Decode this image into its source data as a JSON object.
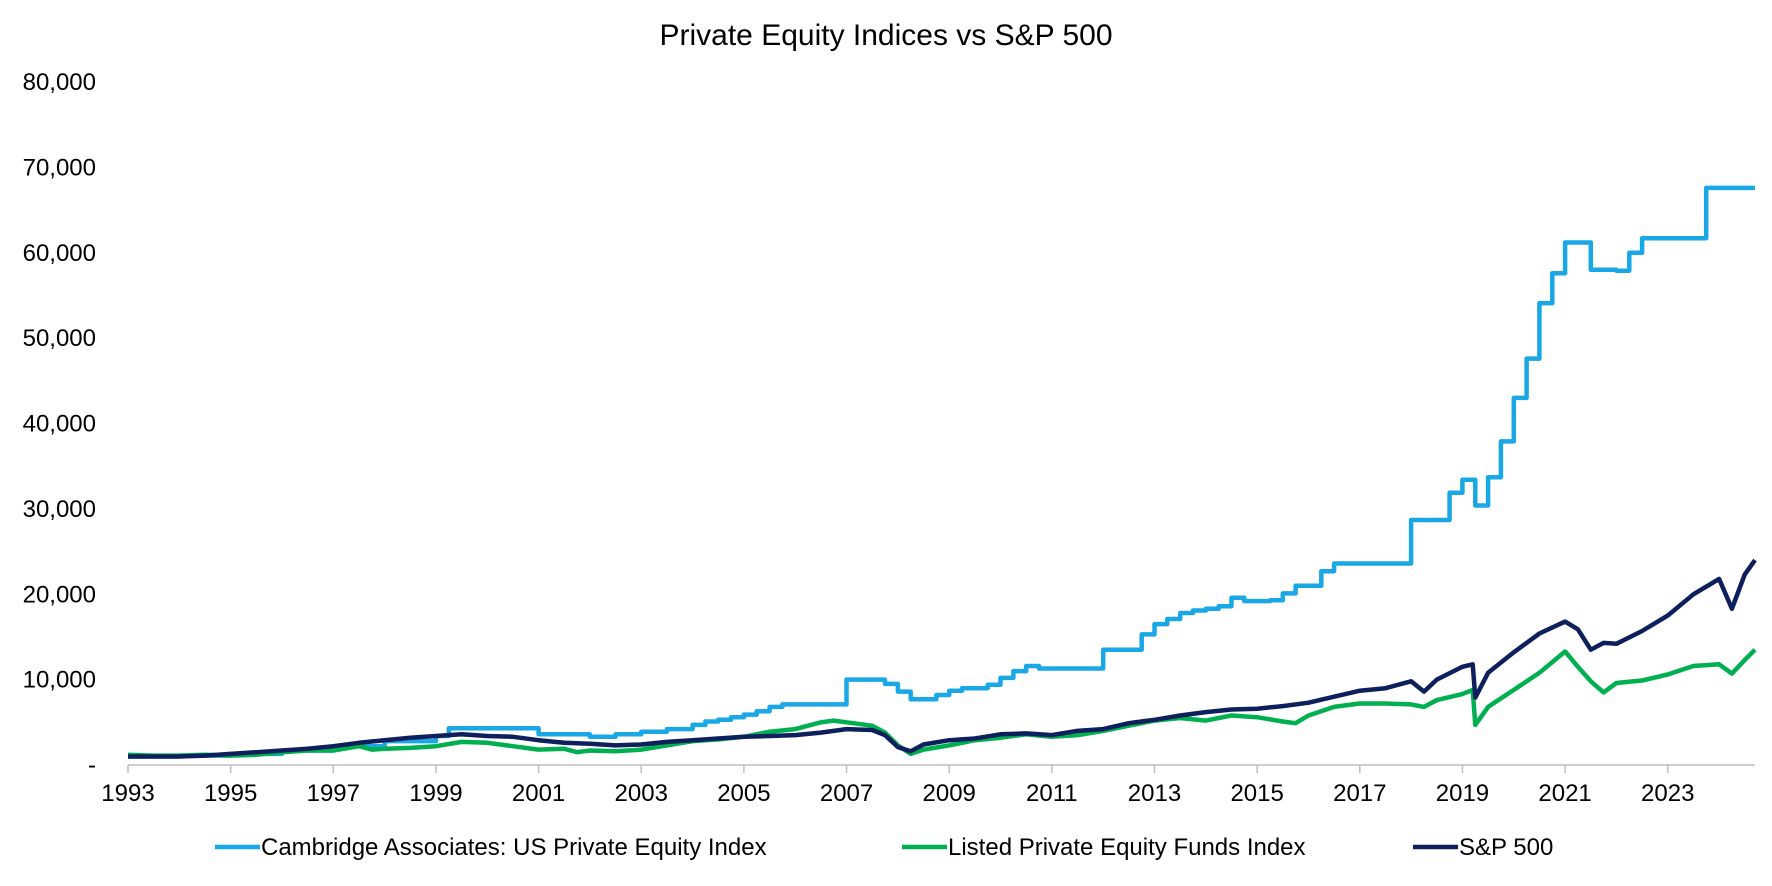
{
  "chart_data": {
    "type": "line",
    "title": "Private Equity Indices vs S&P 500",
    "xlabel": "",
    "ylabel": "",
    "xlim": [
      1993.0,
      2024.7
    ],
    "ylim": [
      0,
      80000
    ],
    "x_ticks": [
      1993,
      1995,
      1997,
      1999,
      2001,
      2003,
      2005,
      2007,
      2009,
      2011,
      2013,
      2015,
      2017,
      2019,
      2021,
      2023
    ],
    "y_ticks": [
      0,
      10000,
      20000,
      30000,
      40000,
      50000,
      60000,
      70000,
      80000
    ],
    "y_tick_labels": [
      "-",
      "10,000",
      "20,000",
      "30,000",
      "40,000",
      "50,000",
      "60,000",
      "70,000",
      "80,000"
    ],
    "grid": false,
    "legend_position": "bottom",
    "series": [
      {
        "name": "Cambridge Associates: US Private Equity Index",
        "color": "#1aa7e6",
        "step": true,
        "points": [
          [
            1993.0,
            1000
          ],
          [
            1994.0,
            1100
          ],
          [
            1995.0,
            1300
          ],
          [
            1996.0,
            1700
          ],
          [
            1997.0,
            2200
          ],
          [
            1998.0,
            2800
          ],
          [
            1999.0,
            3400
          ],
          [
            1999.25,
            4300
          ],
          [
            2001.0,
            3600
          ],
          [
            2002.0,
            3300
          ],
          [
            2002.5,
            3600
          ],
          [
            2003.0,
            3900
          ],
          [
            2003.5,
            4200
          ],
          [
            2004.0,
            4700
          ],
          [
            2004.25,
            5100
          ],
          [
            2004.5,
            5300
          ],
          [
            2004.75,
            5600
          ],
          [
            2005.0,
            5900
          ],
          [
            2005.25,
            6300
          ],
          [
            2005.5,
            6800
          ],
          [
            2005.75,
            7100
          ],
          [
            2007.0,
            10000
          ],
          [
            2007.75,
            9500
          ],
          [
            2008.0,
            8600
          ],
          [
            2008.25,
            7700
          ],
          [
            2008.75,
            8200
          ],
          [
            2009.0,
            8700
          ],
          [
            2009.25,
            9000
          ],
          [
            2009.75,
            9400
          ],
          [
            2010.0,
            10200
          ],
          [
            2010.25,
            11000
          ],
          [
            2010.5,
            11600
          ],
          [
            2010.75,
            11300
          ],
          [
            2012.0,
            13500
          ],
          [
            2012.75,
            15300
          ],
          [
            2013.0,
            16500
          ],
          [
            2013.25,
            17100
          ],
          [
            2013.5,
            17800
          ],
          [
            2013.75,
            18100
          ],
          [
            2014.0,
            18300
          ],
          [
            2014.25,
            18600
          ],
          [
            2014.5,
            19600
          ],
          [
            2014.75,
            19200
          ],
          [
            2015.25,
            19300
          ],
          [
            2015.5,
            20100
          ],
          [
            2015.75,
            21000
          ],
          [
            2016.25,
            22700
          ],
          [
            2016.5,
            23600
          ],
          [
            2018.0,
            28700
          ],
          [
            2018.75,
            31900
          ],
          [
            2019.0,
            33400
          ],
          [
            2019.25,
            30400
          ],
          [
            2019.5,
            33700
          ],
          [
            2019.75,
            37900
          ],
          [
            2020.0,
            43000
          ],
          [
            2020.25,
            47600
          ],
          [
            2020.5,
            54100
          ],
          [
            2020.75,
            57600
          ],
          [
            2021.0,
            61200
          ],
          [
            2021.5,
            58000
          ],
          [
            2022.0,
            57900
          ],
          [
            2022.25,
            60000
          ],
          [
            2022.5,
            61700
          ],
          [
            2023.75,
            67600
          ],
          [
            2024.7,
            67600
          ]
        ]
      },
      {
        "name": "Listed Private Equity Funds Index",
        "color": "#00b050",
        "step": false,
        "points": [
          [
            1993.0,
            1200
          ],
          [
            1993.5,
            1100
          ],
          [
            1994.0,
            1100
          ],
          [
            1994.5,
            1200
          ],
          [
            1995.0,
            1100
          ],
          [
            1995.5,
            1200
          ],
          [
            1996.0,
            1500
          ],
          [
            1996.5,
            1700
          ],
          [
            1997.0,
            1700
          ],
          [
            1997.5,
            2200
          ],
          [
            1997.75,
            1800
          ],
          [
            1998.0,
            1900
          ],
          [
            1998.5,
            2000
          ],
          [
            1999.0,
            2200
          ],
          [
            1999.5,
            2700
          ],
          [
            2000.0,
            2600
          ],
          [
            2000.5,
            2200
          ],
          [
            2001.0,
            1800
          ],
          [
            2001.5,
            1900
          ],
          [
            2001.75,
            1500
          ],
          [
            2002.0,
            1700
          ],
          [
            2002.5,
            1600
          ],
          [
            2003.0,
            1800
          ],
          [
            2003.5,
            2300
          ],
          [
            2004.0,
            2800
          ],
          [
            2004.5,
            3000
          ],
          [
            2005.0,
            3300
          ],
          [
            2005.5,
            3900
          ],
          [
            2006.0,
            4200
          ],
          [
            2006.5,
            5000
          ],
          [
            2006.75,
            5200
          ],
          [
            2007.0,
            5000
          ],
          [
            2007.5,
            4600
          ],
          [
            2007.75,
            3800
          ],
          [
            2008.0,
            2300
          ],
          [
            2008.25,
            1300
          ],
          [
            2008.5,
            1800
          ],
          [
            2009.0,
            2300
          ],
          [
            2009.5,
            2900
          ],
          [
            2010.0,
            3200
          ],
          [
            2010.5,
            3600
          ],
          [
            2011.0,
            3300
          ],
          [
            2011.5,
            3500
          ],
          [
            2012.0,
            4000
          ],
          [
            2012.5,
            4600
          ],
          [
            2013.0,
            5200
          ],
          [
            2013.5,
            5500
          ],
          [
            2014.0,
            5200
          ],
          [
            2014.5,
            5800
          ],
          [
            2015.0,
            5600
          ],
          [
            2015.5,
            5100
          ],
          [
            2015.75,
            4900
          ],
          [
            2016.0,
            5800
          ],
          [
            2016.5,
            6800
          ],
          [
            2017.0,
            7200
          ],
          [
            2017.5,
            7200
          ],
          [
            2018.0,
            7100
          ],
          [
            2018.25,
            6800
          ],
          [
            2018.5,
            7600
          ],
          [
            2019.0,
            8300
          ],
          [
            2019.2,
            8800
          ],
          [
            2019.25,
            4700
          ],
          [
            2019.5,
            6800
          ],
          [
            2020.0,
            8800
          ],
          [
            2020.5,
            10800
          ],
          [
            2021.0,
            13300
          ],
          [
            2021.25,
            11500
          ],
          [
            2021.5,
            9800
          ],
          [
            2021.75,
            8500
          ],
          [
            2022.0,
            9600
          ],
          [
            2022.5,
            9900
          ],
          [
            2023.0,
            10600
          ],
          [
            2023.5,
            11600
          ],
          [
            2024.0,
            11800
          ],
          [
            2024.25,
            10700
          ],
          [
            2024.5,
            12300
          ],
          [
            2024.7,
            13500
          ]
        ]
      },
      {
        "name": "S&P 500",
        "color": "#0d1f5c",
        "step": false,
        "points": [
          [
            1993.0,
            1000
          ],
          [
            1993.5,
            1000
          ],
          [
            1994.0,
            1000
          ],
          [
            1994.5,
            1100
          ],
          [
            1995.0,
            1300
          ],
          [
            1995.5,
            1500
          ],
          [
            1996.0,
            1700
          ],
          [
            1996.5,
            1900
          ],
          [
            1997.0,
            2200
          ],
          [
            1997.5,
            2600
          ],
          [
            1998.0,
            2900
          ],
          [
            1998.5,
            3200
          ],
          [
            1999.0,
            3400
          ],
          [
            1999.5,
            3600
          ],
          [
            2000.0,
            3400
          ],
          [
            2000.5,
            3300
          ],
          [
            2001.0,
            2900
          ],
          [
            2001.5,
            2600
          ],
          [
            2002.0,
            2500
          ],
          [
            2002.5,
            2300
          ],
          [
            2003.0,
            2400
          ],
          [
            2003.5,
            2700
          ],
          [
            2004.0,
            2900
          ],
          [
            2004.5,
            3100
          ],
          [
            2005.0,
            3300
          ],
          [
            2005.5,
            3400
          ],
          [
            2006.0,
            3500
          ],
          [
            2006.5,
            3800
          ],
          [
            2007.0,
            4200
          ],
          [
            2007.5,
            4100
          ],
          [
            2007.75,
            3500
          ],
          [
            2008.0,
            2100
          ],
          [
            2008.25,
            1600
          ],
          [
            2008.5,
            2400
          ],
          [
            2009.0,
            2900
          ],
          [
            2009.5,
            3100
          ],
          [
            2010.0,
            3600
          ],
          [
            2010.5,
            3700
          ],
          [
            2011.0,
            3500
          ],
          [
            2011.5,
            4000
          ],
          [
            2012.0,
            4200
          ],
          [
            2012.5,
            4900
          ],
          [
            2013.0,
            5300
          ],
          [
            2013.5,
            5800
          ],
          [
            2014.0,
            6200
          ],
          [
            2014.5,
            6500
          ],
          [
            2015.0,
            6600
          ],
          [
            2015.5,
            6900
          ],
          [
            2016.0,
            7300
          ],
          [
            2016.5,
            8000
          ],
          [
            2017.0,
            8700
          ],
          [
            2017.5,
            9000
          ],
          [
            2018.0,
            9800
          ],
          [
            2018.25,
            8600
          ],
          [
            2018.5,
            10000
          ],
          [
            2019.0,
            11500
          ],
          [
            2019.2,
            11800
          ],
          [
            2019.25,
            7900
          ],
          [
            2019.5,
            10800
          ],
          [
            2020.0,
            13200
          ],
          [
            2020.5,
            15400
          ],
          [
            2021.0,
            16800
          ],
          [
            2021.25,
            15900
          ],
          [
            2021.5,
            13500
          ],
          [
            2021.75,
            14300
          ],
          [
            2022.0,
            14200
          ],
          [
            2022.5,
            15700
          ],
          [
            2023.0,
            17500
          ],
          [
            2023.5,
            20000
          ],
          [
            2024.0,
            21800
          ],
          [
            2024.25,
            18300
          ],
          [
            2024.5,
            22300
          ],
          [
            2024.7,
            24000
          ]
        ]
      }
    ]
  }
}
